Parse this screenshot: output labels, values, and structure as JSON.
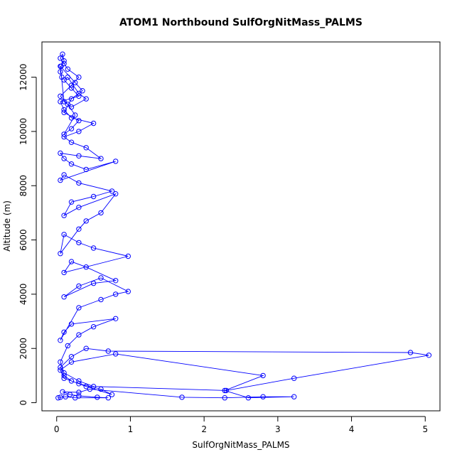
{
  "chart_data": {
    "type": "scatter",
    "title": "ATOM1 Northbound SulfOrgNitMass_PALMS",
    "xlabel": "SulfOrgNitMass_PALMS",
    "ylabel": "Altitude (m)",
    "xlim": [
      -0.2,
      5.2
    ],
    "ylim": [
      -300,
      13300
    ],
    "x_ticks": [
      "0",
      "1",
      "2",
      "3",
      "4",
      "5"
    ],
    "y_ticks": [
      "0",
      "2000",
      "4000",
      "6000",
      "8000",
      "10000",
      "12000"
    ],
    "grid": false,
    "legend": "none",
    "marker": "open-circle",
    "connected": true,
    "color": "#0000ff",
    "series": [
      {
        "x": [
          0.02,
          0.05,
          0.12,
          0.25,
          0.7,
          0.55,
          0.3,
          0.18,
          0.08,
          0.3,
          0.45,
          1.7,
          2.28,
          2.8,
          3.22,
          2.6,
          2.28,
          2.8,
          0.8,
          0.2,
          0.05,
          0.1,
          0.3,
          0.6,
          0.75,
          0.4,
          0.2,
          0.1,
          0.05,
          0.2,
          0.4,
          0.7,
          4.8,
          5.05,
          3.22,
          2.3,
          0.5,
          0.3,
          0.1,
          0.05,
          0.15,
          0.3,
          0.5,
          0.8,
          0.2,
          0.1,
          0.05,
          0.3,
          0.6,
          0.8,
          0.97,
          0.6,
          0.3,
          0.1,
          0.5,
          0.8,
          0.4,
          0.2,
          0.1,
          0.97,
          0.5,
          0.3,
          0.1,
          0.05,
          0.3,
          0.4,
          0.6,
          0.8,
          0.3,
          0.1,
          0.2,
          0.5,
          0.75,
          0.3,
          0.1,
          0.05,
          0.8,
          0.4,
          0.2,
          0.1,
          0.05,
          0.3,
          0.6,
          0.4,
          0.2,
          0.1,
          0.3,
          0.5,
          0.2,
          0.1,
          0.05,
          0.3,
          0.2,
          0.1,
          0.15,
          0.3,
          0.4,
          0.2,
          0.1,
          0.05,
          0.25,
          0.35,
          0.2,
          0.1,
          0.3,
          0.2,
          0.1,
          0.25,
          0.15,
          0.05,
          0.2,
          0.3,
          0.15,
          0.1,
          0.05,
          0.08,
          0.1,
          0.06,
          0.05,
          0.07
        ],
        "y": [
          180,
          200,
          220,
          180,
          180,
          200,
          250,
          300,
          400,
          380,
          500,
          200,
          180,
          220,
          220,
          180,
          450,
          1000,
          1800,
          1500,
          1200,
          900,
          700,
          500,
          300,
          600,
          800,
          1000,
          1300,
          1700,
          2000,
          1900,
          1850,
          1750,
          900,
          450,
          600,
          800,
          1100,
          1500,
          2100,
          2500,
          2800,
          3100,
          2900,
          2600,
          2300,
          3500,
          3800,
          4000,
          4100,
          4600,
          4300,
          3900,
          4400,
          4500,
          5000,
          5200,
          4800,
          5400,
          5700,
          5900,
          6200,
          5500,
          6400,
          6700,
          7000,
          7700,
          7200,
          6900,
          7400,
          7600,
          7800,
          8100,
          8400,
          8200,
          8900,
          8600,
          8800,
          9000,
          9200,
          9100,
          9000,
          9400,
          9600,
          9800,
          10000,
          10300,
          10500,
          10800,
          11100,
          11300,
          11600,
          11900,
          12000,
          11400,
          11200,
          10900,
          11100,
          12400,
          11800,
          11500,
          11200,
          10700,
          10400,
          10100,
          9900,
          10600,
          11000,
          11300,
          11700,
          12000,
          12300,
          12500,
          12700,
          12850,
          12600,
          12400,
          12200,
          12000
        ],
        "color": "#0000ff"
      }
    ]
  }
}
